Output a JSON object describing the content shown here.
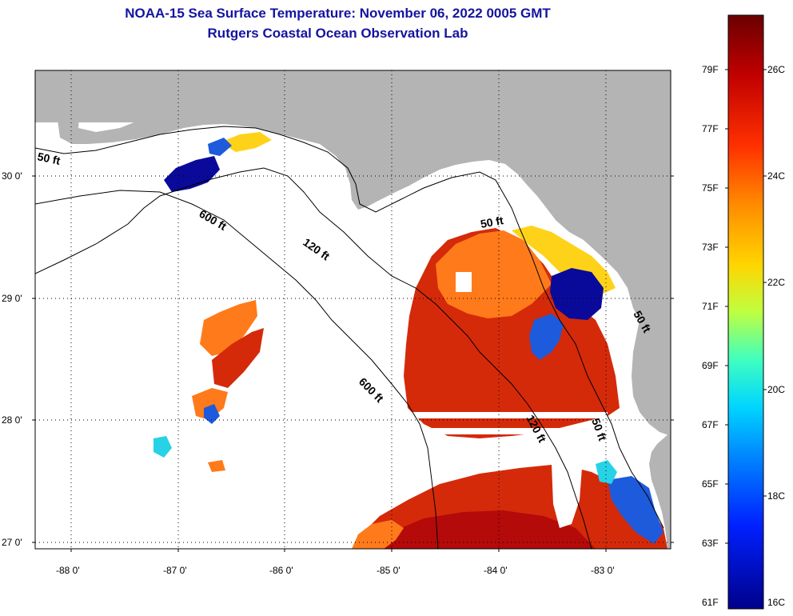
{
  "header": {
    "title": "NOAA-15 Sea Surface Temperature:  November 06, 2022 0005 GMT",
    "subtitle": "Rutgers Coastal Ocean Observation Lab"
  },
  "map": {
    "lat_labels": [
      "30 0'",
      "29 0'",
      "28 0'",
      "27 0'"
    ],
    "lon_labels": [
      "-88 0'",
      "-87 0'",
      "-86 0'",
      "-85 0'",
      "-84 0'",
      "-83 0'"
    ],
    "isobaths": [
      "50 ft",
      "600 ft",
      "120 ft",
      "600 ft",
      "120 ft",
      "50 ft",
      "50 ft",
      "50 ft"
    ]
  },
  "colorbar": {
    "f_labels": [
      "79F",
      "77F",
      "75F",
      "73F",
      "71F",
      "69F",
      "67F",
      "65F",
      "63F",
      "61F"
    ],
    "c_labels": [
      "26C",
      "24C",
      "22C",
      "20C",
      "18C",
      "16C"
    ],
    "colors": [
      "#6a0000",
      "#c00000",
      "#ff3000",
      "#ff8c00",
      "#ffd500",
      "#bfff40",
      "#40ffbf",
      "#00d5ff",
      "#0080ff",
      "#0020ff",
      "#00008a"
    ]
  },
  "colors": {
    "land": "#b4b4b4",
    "ocean_nodata": "#ffffff",
    "title": "#1414a0",
    "warm": "#d42a0a",
    "hot": "#b40a0a",
    "orange": "#ff7a1a",
    "yellow": "#ffd21a",
    "cold": "#0a0a9a",
    "blue": "#1e5adc",
    "cyan": "#28d2e6"
  }
}
